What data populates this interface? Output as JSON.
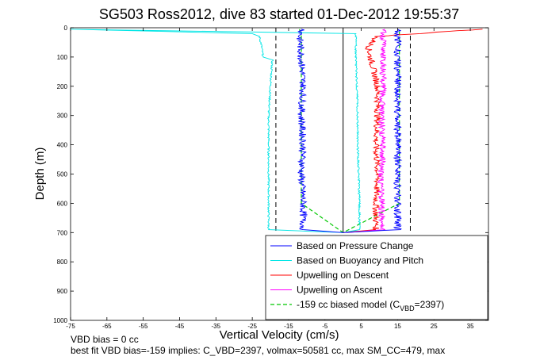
{
  "chart_data": {
    "type": "line",
    "title": "SG503 Ross2012, dive 83 started 01-Dec-2012 19:55:37",
    "xlabel": "Vertical Velocity (cm/s)",
    "ylabel": "Depth (m)",
    "xlim": [
      -75,
      40
    ],
    "ylim": [
      0,
      1000
    ],
    "y_reversed": true,
    "grid": false,
    "legend_position": "bottom-right",
    "xticks": [
      -75,
      -65,
      -55,
      -45,
      -35,
      -25,
      -15,
      -5,
      5,
      15,
      25,
      35
    ],
    "yticks": [
      0,
      100,
      200,
      300,
      400,
      500,
      600,
      700,
      800,
      900,
      1000
    ],
    "vertical_lines": [
      {
        "x": 0,
        "style": "solid",
        "color": "#000000",
        "depth_range": [
          0,
          700
        ]
      },
      {
        "x": -18.5,
        "style": "dashed",
        "color": "#000000",
        "depth_range": [
          0,
          700
        ]
      },
      {
        "x": 18.5,
        "style": "dashed",
        "color": "#000000",
        "depth_range": [
          0,
          700
        ]
      }
    ],
    "series": [
      {
        "name": "Based on Pressure Change",
        "color": "#0000ff",
        "depth": [
          5,
          30,
          100,
          200,
          300,
          400,
          500,
          600,
          690,
          700,
          690,
          600,
          500,
          400,
          300,
          200,
          100,
          30,
          5
        ],
        "velocity": [
          -11,
          -12,
          -11.5,
          -11,
          -11.5,
          -11,
          -11.5,
          -11,
          -11,
          0,
          15,
          15,
          15,
          15,
          15,
          15,
          15,
          15,
          15
        ]
      },
      {
        "name": "Based on Buoyancy and Pitch",
        "color": "#00e5e5",
        "depth": [
          5,
          20,
          30,
          60,
          100,
          110,
          200,
          300,
          400,
          500,
          600,
          690,
          700,
          690,
          600,
          500,
          400,
          300,
          200,
          100,
          20,
          5
        ],
        "velocity": [
          -75,
          -25,
          -23,
          -22.5,
          -22,
          -19.5,
          -20,
          -20.5,
          -20.5,
          -20.5,
          -20.5,
          -20.5,
          0,
          4.5,
          4.5,
          4.3,
          4,
          4,
          3.8,
          3.5,
          3.5,
          -75
        ]
      },
      {
        "name": "Upwelling on Descent",
        "color": "#ff0000",
        "depth": [
          5,
          30,
          70,
          100,
          200,
          300,
          400,
          500,
          600,
          690,
          700
        ],
        "velocity": [
          38,
          9,
          7,
          7.5,
          9.5,
          9.5,
          9,
          9.5,
          9,
          9,
          0
        ]
      },
      {
        "name": "Upwelling on Ascent",
        "color": "#ff00ff",
        "depth": [
          700,
          690,
          600,
          500,
          400,
          300,
          200,
          100,
          30,
          5
        ],
        "velocity": [
          1,
          11,
          10.5,
          10.5,
          11,
          10.5,
          11,
          11,
          11,
          11.5
        ]
      },
      {
        "name": "-159 cc biased model (C",
        "name_sub": "VBD",
        "name_suffix": "=2397)",
        "color": "#00c800",
        "dashed": true,
        "depth": [
          5,
          30,
          100,
          200,
          300,
          400,
          500,
          600,
          700,
          600,
          500,
          400,
          300,
          200,
          100,
          30,
          5
        ],
        "velocity": [
          -12,
          -11.5,
          -11.5,
          -11.5,
          -11.5,
          -11.5,
          -11.5,
          -11.5,
          0,
          15.5,
          15.5,
          15.5,
          15.5,
          15.5,
          15.5,
          15.5,
          15.5
        ]
      }
    ]
  },
  "footer": {
    "line1": "VBD bias = 0 cc",
    "line2": "best fit VBD bias=-159 implies: C_VBD=2397, volmax=50581 cc, max SM_CC=479, max"
  }
}
